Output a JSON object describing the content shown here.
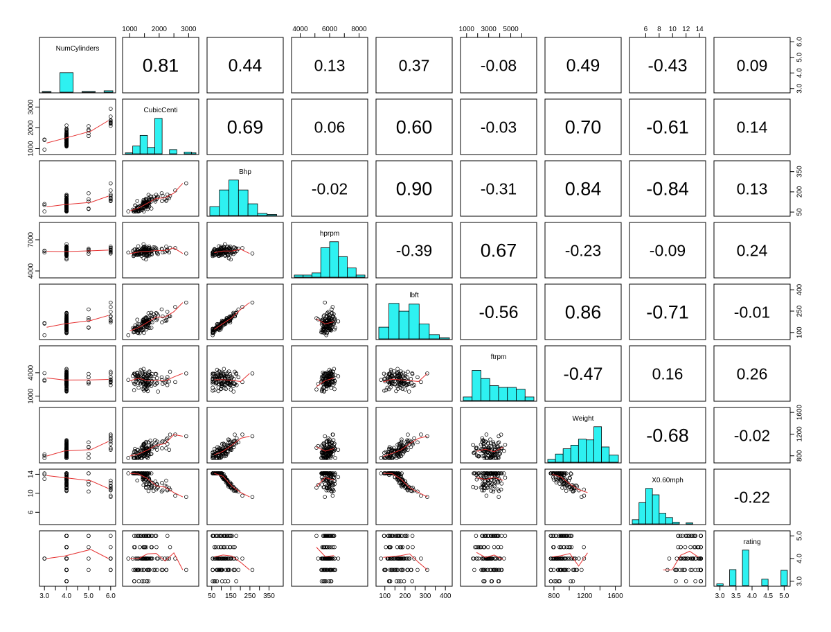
{
  "chart_data": {
    "type": "scatter-matrix",
    "variables": [
      "NumCylinders",
      "CubicCenti",
      "Bhp",
      "hprpm",
      "lbft",
      "ftrpm",
      "Weight",
      "X0.60mph",
      "rating"
    ],
    "correlations": [
      [
        "0.81",
        "0.44",
        "0.13",
        "0.37",
        "-0.08",
        "0.49",
        "-0.43",
        "0.09"
      ],
      [
        "0.69",
        "0.06",
        "0.60",
        "-0.03",
        "0.70",
        "-0.61",
        "0.14"
      ],
      [
        "-0.02",
        "0.90",
        "-0.31",
        "0.84",
        "-0.84",
        "0.13"
      ],
      [
        "-0.39",
        "0.67",
        "-0.23",
        "-0.09",
        "0.24"
      ],
      [
        "-0.56",
        "0.86",
        "-0.71",
        "-0.01"
      ],
      [
        "-0.47",
        "0.16",
        "0.26"
      ],
      [
        "-0.68",
        "-0.02"
      ],
      [
        "-0.22"
      ]
    ],
    "ranges": [
      [
        2.9,
        6.1
      ],
      [
        850,
        3250
      ],
      [
        40,
        410
      ],
      [
        3600,
        8400
      ],
      [
        70,
        420
      ],
      [
        700,
        7100
      ],
      [
        720,
        1640
      ],
      [
        4,
        14.5
      ],
      [
        2.9,
        5.1
      ]
    ],
    "axis_ticks": [
      {
        "values": [
          3,
          3.5,
          4,
          4.5,
          5,
          5.5,
          6
        ],
        "labels": [
          "3.0",
          "",
          "4.0",
          "",
          "5.0",
          "",
          "6.0"
        ],
        "right_labels": [
          "3.0",
          "4.0",
          "5.0",
          "6.0"
        ],
        "right_values": [
          3,
          4,
          5,
          6
        ]
      },
      {
        "values": [
          1000,
          1500,
          2000,
          2500,
          3000
        ],
        "labels": [
          "1000",
          "",
          "2000",
          "",
          "3000"
        ],
        "right_labels": [
          "1000",
          "2000",
          "3000"
        ],
        "right_values": [
          1000,
          2000,
          3000
        ]
      },
      {
        "values": [
          50,
          100,
          150,
          200,
          250,
          300,
          350
        ],
        "labels": [
          "50",
          "",
          "150",
          "",
          "250",
          "",
          "350"
        ],
        "right_labels": [
          "50",
          "200",
          "350"
        ],
        "right_values": [
          50,
          200,
          350
        ]
      },
      {
        "values": [
          4000,
          5000,
          6000,
          7000,
          8000
        ],
        "labels": [
          "4000",
          "",
          "6000",
          "",
          "8000"
        ],
        "right_labels": [
          "4000",
          "7000"
        ],
        "right_values": [
          4000,
          7000
        ]
      },
      {
        "values": [
          100,
          150,
          200,
          250,
          300,
          350,
          400
        ],
        "labels": [
          "100",
          "",
          "200",
          "",
          "300",
          "",
          "400"
        ],
        "right_labels": [
          "100",
          "250",
          "400"
        ],
        "right_values": [
          100,
          250,
          400
        ]
      },
      {
        "values": [
          1000,
          2000,
          3000,
          4000,
          5000,
          6000
        ],
        "labels": [
          "1000",
          "",
          "3000",
          "",
          "5000",
          ""
        ],
        "right_labels": [
          "1000",
          "4000"
        ],
        "right_values": [
          1000,
          4000
        ]
      },
      {
        "values": [
          800,
          1000,
          1200,
          1400,
          1600
        ],
        "labels": [
          "800",
          "",
          "1200",
          "",
          "1600"
        ],
        "right_labels": [
          "800",
          "1200",
          "1600"
        ],
        "right_values": [
          800,
          1200,
          1600
        ]
      },
      {
        "values": [
          6,
          8,
          10,
          12,
          14
        ],
        "labels": [
          "6",
          "8",
          "10",
          "12",
          "14"
        ],
        "right_labels": [
          "6",
          "10",
          "14"
        ],
        "right_values": [
          6,
          10,
          14
        ]
      },
      {
        "values": [
          3,
          3.5,
          4,
          4.5,
          5
        ],
        "labels": [
          "3.0",
          "3.5",
          "4.0",
          "4.5",
          "5.0"
        ],
        "right_labels": [
          "3.0",
          "4.0",
          "5.0"
        ],
        "right_values": [
          3,
          4,
          5
        ]
      }
    ],
    "histograms": [
      {
        "edges": [
          2.9,
          3.3,
          3.7,
          4.3,
          4.7,
          5.3,
          5.7,
          6.1
        ],
        "counts": [
          0.02,
          0,
          0.55,
          0,
          0.02,
          0,
          0.04
        ]
      },
      {
        "edges": [
          850,
          1100,
          1350,
          1600,
          1850,
          2100,
          2350,
          2600,
          2850,
          3100,
          3250
        ],
        "counts": [
          0.03,
          0.22,
          0.52,
          0.18,
          1.0,
          0.0,
          0.12,
          0.0,
          0.05,
          0.03
        ]
      },
      {
        "edges": [
          40,
          90,
          140,
          190,
          240,
          290,
          340,
          390,
          410
        ],
        "counts": [
          0.25,
          0.72,
          1.0,
          0.72,
          0.33,
          0.06,
          0.03,
          0
        ]
      },
      {
        "edges": [
          3600,
          4200,
          4800,
          5400,
          6000,
          6600,
          7200,
          7800,
          8400
        ],
        "counts": [
          0.06,
          0.06,
          0.12,
          0.83,
          1.0,
          0.58,
          0.26,
          0.06
        ]
      },
      {
        "edges": [
          70,
          120,
          170,
          220,
          270,
          320,
          370,
          420
        ],
        "counts": [
          0.33,
          1.0,
          0.78,
          0.98,
          0.42,
          0.12,
          0.03
        ]
      },
      {
        "edges": [
          700,
          1500,
          2300,
          3100,
          3900,
          4700,
          5500,
          6300,
          7100
        ],
        "counts": [
          0.1,
          0.85,
          0.62,
          0.42,
          0.37,
          0.37,
          0.32,
          0.1
        ]
      },
      {
        "edges": [
          720,
          820,
          920,
          1020,
          1120,
          1220,
          1320,
          1420,
          1520,
          1640
        ],
        "counts": [
          0.08,
          0.23,
          0.38,
          0.48,
          0.65,
          0.63,
          1.0,
          0.43,
          0.2
        ]
      },
      {
        "edges": [
          4,
          5,
          6,
          7,
          8,
          9,
          10,
          11,
          12,
          13,
          14.5
        ],
        "counts": [
          0.12,
          0.6,
          1.0,
          0.82,
          0.3,
          0.18,
          0.05,
          0.0,
          0.03,
          0.0
        ]
      },
      {
        "edges": [
          2.9,
          3.1,
          3.3,
          3.5,
          3.7,
          3.9,
          4.1,
          4.3,
          4.5,
          4.7,
          4.9,
          5.1
        ],
        "counts": [
          0.05,
          0.0,
          0.45,
          0.0,
          1.0,
          0.0,
          0.0,
          0.18,
          0.0,
          0.0,
          0.43
        ]
      }
    ],
    "n_points": 120,
    "grid": false,
    "legend": "none"
  },
  "colors": {
    "hist_fill": "#2EF1F1",
    "smoother": "#E53030",
    "points": "#000000",
    "frame": "#000000"
  }
}
